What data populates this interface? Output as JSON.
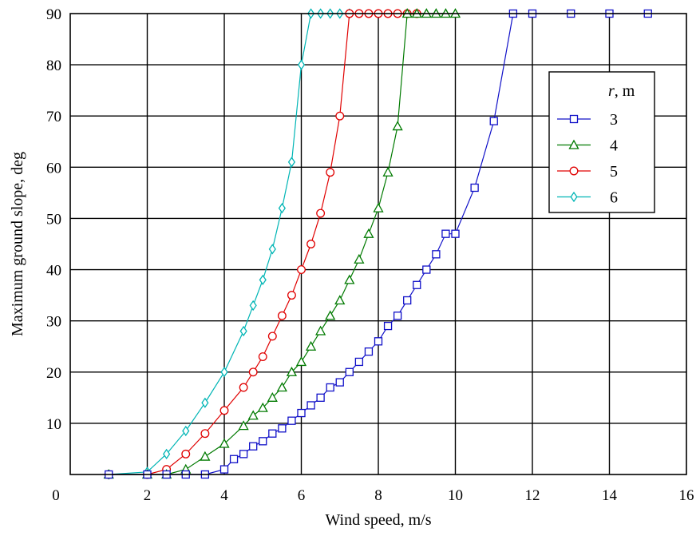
{
  "chart_data": {
    "type": "line",
    "title": "",
    "xlabel": "Wind speed, m/s",
    "ylabel": "Maximum ground slope, deg",
    "xlim": [
      0,
      16
    ],
    "ylim": [
      0,
      90
    ],
    "xticks": [
      0,
      2,
      4,
      6,
      8,
      10,
      12,
      14,
      16
    ],
    "yticks": [
      10,
      20,
      30,
      40,
      50,
      60,
      70,
      80,
      90
    ],
    "grid": true,
    "legend": {
      "title_var": "r",
      "title_unit": ", m",
      "placement": "top-right"
    },
    "series": [
      {
        "name": "3",
        "color": "#1010c8",
        "marker": "square",
        "x": [
          1,
          2,
          2.5,
          3,
          3.5,
          4,
          4.25,
          4.5,
          4.75,
          5,
          5.25,
          5.5,
          5.75,
          6,
          6.25,
          6.5,
          6.75,
          7,
          7.25,
          7.5,
          7.75,
          8,
          8.25,
          8.5,
          8.75,
          9,
          9.25,
          9.5,
          9.75,
          10,
          10.5,
          11,
          11.5,
          12,
          13,
          14,
          15
        ],
        "y": [
          0,
          0,
          0,
          0,
          0,
          1,
          3,
          4,
          5.5,
          6.5,
          8,
          9,
          10.5,
          12,
          13.5,
          15,
          17,
          18,
          20,
          22,
          24,
          26,
          29,
          31,
          34,
          37,
          40,
          43,
          47,
          47,
          56,
          69,
          90,
          90,
          90,
          90,
          90
        ]
      },
      {
        "name": "4",
        "color": "#007a00",
        "marker": "triangle",
        "x": [
          1,
          2,
          2.5,
          3,
          3.5,
          4,
          4.5,
          4.75,
          5,
          5.25,
          5.5,
          5.75,
          6,
          6.25,
          6.5,
          6.75,
          7,
          7.25,
          7.5,
          7.75,
          8,
          8.25,
          8.5,
          8.75,
          9,
          9.25,
          9.5,
          9.75,
          10
        ],
        "y": [
          0,
          0,
          0,
          1,
          3.5,
          6,
          9.5,
          11.5,
          13,
          15,
          17,
          20,
          22,
          25,
          28,
          31,
          34,
          38,
          42,
          47,
          52,
          59,
          68,
          90,
          90,
          90,
          90,
          90,
          90
        ]
      },
      {
        "name": "5",
        "color": "#e00000",
        "marker": "circle",
        "x": [
          1,
          2,
          2.5,
          3,
          3.5,
          4,
          4.5,
          4.75,
          5,
          5.25,
          5.5,
          5.75,
          6,
          6.25,
          6.5,
          6.75,
          7,
          7.25,
          7.5,
          7.75,
          8,
          8.25,
          8.5,
          8.75,
          9
        ],
        "y": [
          0,
          0,
          1,
          4,
          8,
          12.5,
          17,
          20,
          23,
          27,
          31,
          35,
          40,
          45,
          51,
          59,
          70,
          90,
          90,
          90,
          90,
          90,
          90,
          90,
          90
        ]
      },
      {
        "name": "6",
        "color": "#00b5b5",
        "marker": "diamond",
        "x": [
          1,
          2,
          2.5,
          3,
          3.5,
          4,
          4.5,
          4.75,
          5,
          5.25,
          5.5,
          5.75,
          6,
          6.25,
          6.5,
          6.75,
          7,
          7.25
        ],
        "y": [
          0,
          0.5,
          4,
          8.5,
          14,
          20,
          28,
          33,
          38,
          44,
          52,
          61,
          80,
          90,
          90,
          90,
          90,
          90
        ]
      }
    ]
  }
}
